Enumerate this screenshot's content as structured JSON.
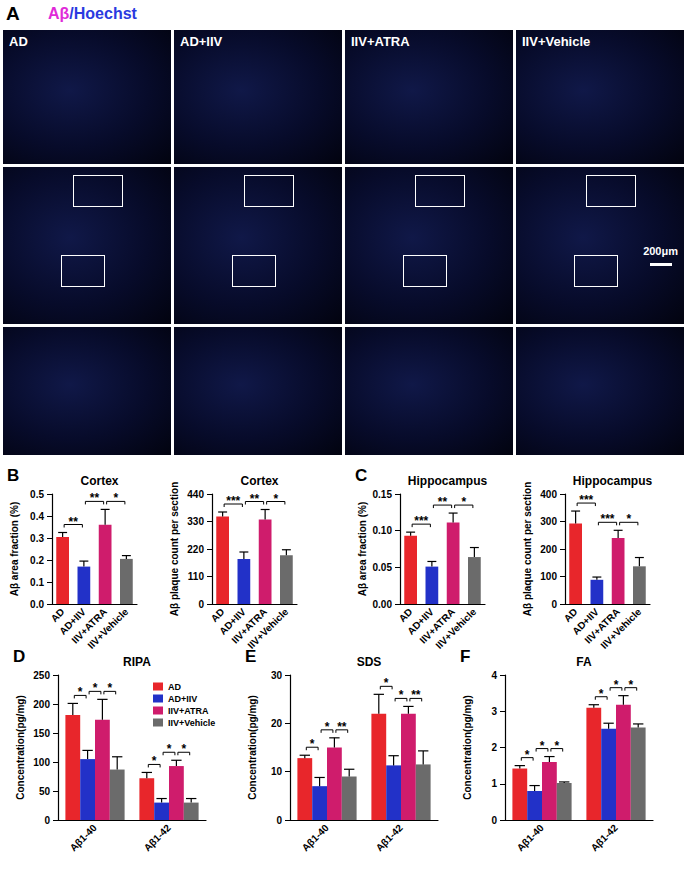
{
  "panel_a": {
    "panel": "A",
    "title": [
      {
        "text": "Aβ",
        "color": "#e02ad8"
      },
      {
        "text": "/Hoechst",
        "color": "#2a3ae0"
      }
    ],
    "groups": [
      "AD",
      "AD+IIV",
      "IIV+ATRA",
      "IIV+Vehicle"
    ],
    "scale_bar": "200μm"
  },
  "chart_data": [
    {
      "panel": "B",
      "type": "bar",
      "title": "Cortex",
      "y_label": "Aβ area fraction (%)",
      "categories": [
        "AD",
        "AD+IIV",
        "IIV+ATRA",
        "IIV+Vehicle"
      ],
      "values": [
        0.305,
        0.17,
        0.36,
        0.205
      ],
      "errors": [
        0.02,
        0.025,
        0.07,
        0.015
      ],
      "colors": [
        "#e8262b",
        "#2231c8",
        "#cf1c6c",
        "#6b6b6b"
      ],
      "ylim": [
        0,
        0.5
      ],
      "yticks": [
        {
          "value": 0,
          "label": "0.0"
        },
        0.1,
        0.2,
        0.3,
        0.4,
        0.5
      ],
      "grid": false,
      "annotations": [
        {
          "from": "AD",
          "to": "AD+IIV",
          "label": "**"
        },
        {
          "from": "AD+IIV",
          "to": "IIV+ATRA",
          "label": "**"
        },
        {
          "from": "IIV+ATRA",
          "to": "IIV+Vehicle",
          "label": "*"
        }
      ]
    },
    {
      "type": "bar",
      "title": "Cortex",
      "y_label": "Aβ plaque count per section",
      "categories": [
        "AD",
        "AD+IIV",
        "IIV+ATRA",
        "IIV+Vehicle"
      ],
      "values": [
        350,
        180,
        338,
        195
      ],
      "errors": [
        18,
        28,
        40,
        22
      ],
      "colors": [
        "#e8262b",
        "#2231c8",
        "#cf1c6c",
        "#6b6b6b"
      ],
      "ylim": [
        0,
        440
      ],
      "yticks": [
        0,
        110,
        220,
        330,
        440
      ],
      "grid": false,
      "annotations": [
        {
          "from": "AD",
          "to": "AD+IIV",
          "label": "***"
        },
        {
          "from": "AD+IIV",
          "to": "IIV+ATRA",
          "label": "**"
        },
        {
          "from": "IIV+ATRA",
          "to": "IIV+Vehicle",
          "label": "*"
        }
      ]
    },
    {
      "panel": "C",
      "type": "bar",
      "title": "Hippocampus",
      "y_label": "Aβ area fraction (%)",
      "categories": [
        "AD",
        "AD+IIV",
        "IIV+ATRA",
        "IIV+Vehicle"
      ],
      "values": [
        0.093,
        0.051,
        0.111,
        0.064
      ],
      "errors": [
        0.005,
        0.007,
        0.013,
        0.013
      ],
      "colors": [
        "#e8262b",
        "#2231c8",
        "#cf1c6c",
        "#6b6b6b"
      ],
      "ylim": [
        0,
        0.15
      ],
      "yticks": [
        {
          "value": 0,
          "label": "0.00"
        },
        0.05,
        {
          "value": 0.1,
          "label": "0.10"
        },
        0.15
      ],
      "grid": false,
      "annotations": [
        {
          "from": "AD",
          "to": "AD+IIV",
          "label": "***"
        },
        {
          "from": "AD+IIV",
          "to": "IIV+ATRA",
          "label": "**"
        },
        {
          "from": "IIV+ATRA",
          "to": "IIV+Vehicle",
          "label": "*"
        }
      ]
    },
    {
      "type": "bar",
      "title": "Hippocampus",
      "y_label": "Aβ plaque count per section",
      "categories": [
        "AD",
        "AD+IIV",
        "IIV+ATRA",
        "IIV+Vehicle"
      ],
      "values": [
        293,
        88,
        240,
        137
      ],
      "errors": [
        45,
        10,
        28,
        32
      ],
      "colors": [
        "#e8262b",
        "#2231c8",
        "#cf1c6c",
        "#6b6b6b"
      ],
      "ylim": [
        0,
        400
      ],
      "yticks": [
        0,
        100,
        200,
        300,
        400
      ],
      "grid": false,
      "annotations": [
        {
          "from": "AD",
          "to": "AD+IIV",
          "label": "***"
        },
        {
          "from": "AD+IIV",
          "to": "IIV+ATRA",
          "label": "***"
        },
        {
          "from": "IIV+ATRA",
          "to": "IIV+Vehicle",
          "label": "*"
        }
      ]
    },
    {
      "panel": "D",
      "type": "bar",
      "title": "RIPA",
      "y_label": "Concentration(pg/mg)",
      "categories": [
        "Aβ1-40",
        "Aβ1-42"
      ],
      "series": [
        {
          "name": "AD",
          "color": "#e8262b",
          "values": [
            181,
            72
          ],
          "errors": [
            20,
            10
          ]
        },
        {
          "name": "AD+IIV",
          "color": "#2231c8",
          "values": [
            105,
            30
          ],
          "errors": [
            15,
            7
          ]
        },
        {
          "name": "IIV+ATRA",
          "color": "#cf1c6c",
          "values": [
            173,
            93
          ],
          "errors": [
            35,
            10
          ]
        },
        {
          "name": "IIV+Vehicle",
          "color": "#6b6b6b",
          "values": [
            87,
            30
          ],
          "errors": [
            22,
            7
          ]
        }
      ],
      "ylim": [
        0,
        250
      ],
      "yticks": [
        0,
        50,
        100,
        150,
        200,
        250
      ],
      "grid": false,
      "legend": "upper right",
      "annotations": [
        {
          "category": "Aβ1-40",
          "from": "AD",
          "to": "AD+IIV",
          "label": "*"
        },
        {
          "category": "Aβ1-40",
          "from": "AD+IIV",
          "to": "IIV+ATRA",
          "label": "*"
        },
        {
          "category": "Aβ1-40",
          "from": "IIV+ATRA",
          "to": "IIV+Vehicle",
          "label": "*"
        },
        {
          "category": "Aβ1-42",
          "from": "AD",
          "to": "AD+IIV",
          "label": "*"
        },
        {
          "category": "Aβ1-42",
          "from": "AD+IIV",
          "to": "IIV+ATRA",
          "label": "*"
        },
        {
          "category": "Aβ1-42",
          "from": "IIV+ATRA",
          "to": "IIV+Vehicle",
          "label": "*"
        }
      ]
    },
    {
      "panel": "E",
      "type": "bar",
      "title": "SDS",
      "y_label": "Concentration(pg/mg)",
      "categories": [
        "Aβ1-40",
        "Aβ1-42"
      ],
      "series": [
        {
          "name": "AD",
          "color": "#e8262b",
          "values": [
            12.8,
            22
          ],
          "errors": [
            0.6,
            4
          ]
        },
        {
          "name": "AD+IIV",
          "color": "#2231c8",
          "values": [
            7,
            11.3
          ],
          "errors": [
            1.8,
            2
          ]
        },
        {
          "name": "IIV+ATRA",
          "color": "#cf1c6c",
          "values": [
            15,
            22
          ],
          "errors": [
            2,
            1.5
          ]
        },
        {
          "name": "IIV+Vehicle",
          "color": "#6b6b6b",
          "values": [
            9,
            11.5
          ],
          "errors": [
            1.5,
            2.8
          ]
        }
      ],
      "ylim": [
        0,
        30
      ],
      "yticks": [
        0,
        10,
        20,
        30
      ],
      "grid": false,
      "annotations": [
        {
          "category": "Aβ1-40",
          "from": "AD",
          "to": "AD+IIV",
          "label": "*"
        },
        {
          "category": "Aβ1-40",
          "from": "AD+IIV",
          "to": "IIV+ATRA",
          "label": "*"
        },
        {
          "category": "Aβ1-40",
          "from": "IIV+ATRA",
          "to": "IIV+Vehicle",
          "label": "**"
        },
        {
          "category": "Aβ1-42",
          "from": "AD",
          "to": "AD+IIV",
          "label": "*"
        },
        {
          "category": "Aβ1-42",
          "from": "AD+IIV",
          "to": "IIV+ATRA",
          "label": "*"
        },
        {
          "category": "Aβ1-42",
          "from": "IIV+ATRA",
          "to": "IIV+Vehicle",
          "label": "**"
        }
      ]
    },
    {
      "panel": "F",
      "type": "bar",
      "title": "FA",
      "y_label": "Concentration(pg/mg)",
      "categories": [
        "Aβ1-40",
        "Aβ1-42"
      ],
      "series": [
        {
          "name": "AD",
          "color": "#e8262b",
          "values": [
            1.42,
            3.1
          ],
          "errors": [
            0.08,
            0.08
          ]
        },
        {
          "name": "AD+IIV",
          "color": "#2231c8",
          "values": [
            0.8,
            2.52
          ],
          "errors": [
            0.15,
            0.15
          ]
        },
        {
          "name": "IIV+ATRA",
          "color": "#cf1c6c",
          "values": [
            1.6,
            3.18
          ],
          "errors": [
            0.15,
            0.25
          ]
        },
        {
          "name": "IIV+Vehicle",
          "color": "#6b6b6b",
          "values": [
            1.02,
            2.55
          ],
          "errors": [
            0.03,
            0.1
          ]
        }
      ],
      "ylim": [
        0,
        4
      ],
      "yticks": [
        0,
        1,
        2,
        3,
        4
      ],
      "grid": false,
      "annotations": [
        {
          "category": "Aβ1-40",
          "from": "AD",
          "to": "AD+IIV",
          "label": "*"
        },
        {
          "category": "Aβ1-40",
          "from": "AD+IIV",
          "to": "IIV+ATRA",
          "label": "*"
        },
        {
          "category": "Aβ1-40",
          "from": "IIV+ATRA",
          "to": "IIV+Vehicle",
          "label": "*"
        },
        {
          "category": "Aβ1-42",
          "from": "AD",
          "to": "AD+IIV",
          "label": "*"
        },
        {
          "category": "Aβ1-42",
          "from": "AD+IIV",
          "to": "IIV+ATRA",
          "label": "*"
        },
        {
          "category": "Aβ1-42",
          "from": "IIV+ATRA",
          "to": "IIV+Vehicle",
          "label": "*"
        }
      ]
    }
  ]
}
